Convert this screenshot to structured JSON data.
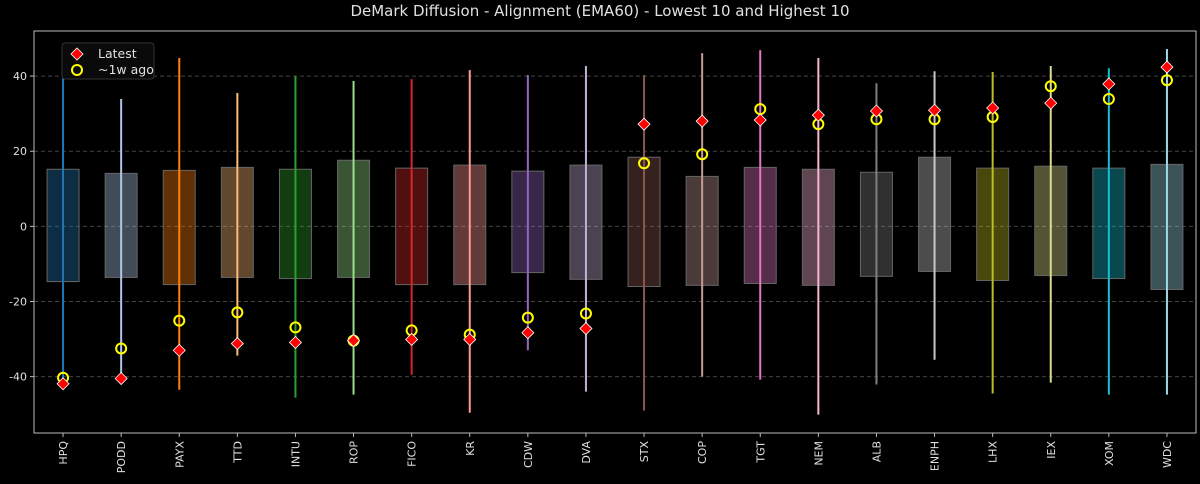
{
  "chart_data": {
    "type": "box-range",
    "title": "DeMark Diffusion - Alignment (EMA60) - Lowest 10 and Highest 10",
    "xlabel": "",
    "ylabel": "",
    "ylim": [
      -55,
      52
    ],
    "yticks": [
      -40,
      -20,
      0,
      20,
      40
    ],
    "grid": "horizontal dashed",
    "legend_position": "top-left",
    "legend": [
      {
        "label": "Latest",
        "marker": "diamond",
        "color": "#ff0000"
      },
      {
        "label": "~1w ago",
        "marker": "circle",
        "color": "#ffff00"
      }
    ],
    "categories": [
      "HPQ",
      "PODD",
      "PAYX",
      "TTD",
      "INTU",
      "ROP",
      "FICO",
      "KR",
      "CDW",
      "DVA",
      "STX",
      "COP",
      "TGT",
      "NEM",
      "ALB",
      "ENPH",
      "LHX",
      "IEX",
      "XOM",
      "WDC"
    ],
    "colors": [
      "#1f77b4",
      "#aec7e8",
      "#ff7f0e",
      "#ffbb78",
      "#2ca02c",
      "#98df8a",
      "#d62728",
      "#ff9896",
      "#9467bd",
      "#c5b0d5",
      "#8c564b",
      "#c49c94",
      "#e377c2",
      "#f7b6d2",
      "#7f7f7f",
      "#c7c7c7",
      "#bcbd22",
      "#dbdb8d",
      "#17becf",
      "#9edae5"
    ],
    "range_min": [
      -42,
      -40.8,
      -43.5,
      -34.4,
      -45.6,
      -44.8,
      -39.5,
      -49.6,
      -33,
      -44,
      -49,
      -40,
      -40.8,
      -50.1,
      -42.1,
      -35.5,
      -44.5,
      -41.6,
      -44.8,
      -44.8
    ],
    "range_max": [
      43.5,
      33.9,
      44.8,
      35.5,
      40,
      38.7,
      39.2,
      41.6,
      40.3,
      42.7,
      40.3,
      46.1,
      46.9,
      44.8,
      38.1,
      41.3,
      41.1,
      42.7,
      42.1,
      47.2
    ],
    "box_low": [
      -14.7,
      -13.6,
      -15.5,
      -13.6,
      -13.9,
      -13.6,
      -15.5,
      -15.5,
      -12.3,
      -14.1,
      -16,
      -15.7,
      -15.2,
      -15.7,
      -13.3,
      -12,
      -14.4,
      -13.1,
      -13.9,
      -16.8
    ],
    "box_high": [
      15.2,
      14.1,
      14.9,
      15.7,
      15.2,
      17.6,
      15.5,
      16.3,
      14.7,
      16.3,
      18.4,
      13.3,
      15.7,
      15.2,
      14.4,
      18.4,
      15.5,
      16,
      15.5,
      16.5
    ],
    "series": [
      {
        "name": "Latest",
        "values": [
          -41.9,
          -40.5,
          -33,
          -31.2,
          -30.9,
          -30.4,
          -30.1,
          -30.1,
          -28.3,
          -27.2,
          27.2,
          28,
          28.3,
          29.6,
          30.7,
          30.9,
          31.5,
          32.8,
          37.9,
          42.4
        ]
      },
      {
        "name": "~1w ago",
        "values": [
          -40.3,
          -32.5,
          -25.1,
          -22.9,
          -26.9,
          -30.4,
          -27.7,
          -28.8,
          -24.3,
          -23.2,
          16.8,
          19.2,
          31.2,
          27.2,
          28.5,
          28.5,
          29.1,
          37.3,
          33.9,
          38.9
        ]
      }
    ]
  }
}
